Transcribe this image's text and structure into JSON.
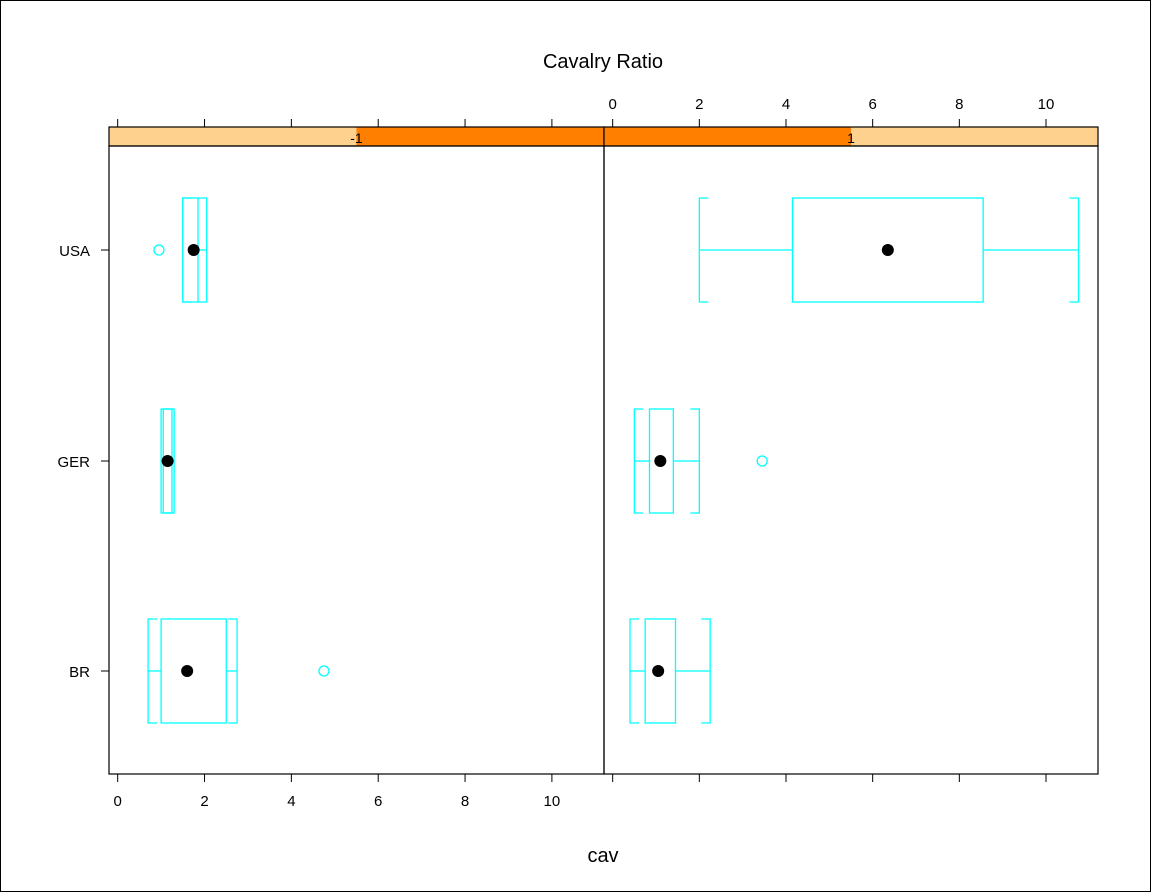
{
  "chart_data": {
    "type": "boxplot",
    "title": "Cavalry Ratio",
    "xlabel": "cav",
    "ylabel": "",
    "xlim": [
      -0.2,
      11.2
    ],
    "x_ticks": [
      0,
      2,
      4,
      6,
      8,
      10
    ],
    "x_tick_labels": [
      "0",
      "2",
      "4",
      "6",
      "8",
      "10"
    ],
    "categories": [
      "BR",
      "GER",
      "USA"
    ],
    "panels": [
      {
        "strip_label": "-1",
        "strip_shingle_range": [
          0.0,
          0.5
        ],
        "boxes": [
          {
            "category": "BR",
            "whisker_low": 0.7,
            "q1": 1.0,
            "median": 1.6,
            "q3": 2.5,
            "whisker_high": 2.75,
            "outliers": [
              4.75
            ]
          },
          {
            "category": "GER",
            "whisker_low": 1.0,
            "q1": 1.05,
            "median": 1.15,
            "q3": 1.25,
            "whisker_high": 1.3,
            "outliers": []
          },
          {
            "category": "USA",
            "whisker_low": 1.5,
            "q1": 1.5,
            "median": 1.75,
            "q3": 1.85,
            "whisker_high": 2.05,
            "outliers": [
              0.95
            ]
          }
        ]
      },
      {
        "strip_label": "1",
        "strip_shingle_range": [
          0.5,
          1.0
        ],
        "boxes": [
          {
            "category": "BR",
            "whisker_low": 0.4,
            "q1": 0.75,
            "median": 1.05,
            "q3": 1.45,
            "whisker_high": 2.25,
            "outliers": []
          },
          {
            "category": "GER",
            "whisker_low": 0.5,
            "q1": 0.85,
            "median": 1.1,
            "q3": 1.4,
            "whisker_high": 2.0,
            "outliers": [
              3.45
            ]
          },
          {
            "category": "USA",
            "whisker_low": 2.0,
            "q1": 4.15,
            "median": 6.35,
            "q3": 8.55,
            "whisker_high": 10.75,
            "outliers": []
          }
        ]
      }
    ],
    "colors": {
      "box": "#00ffff",
      "median_dot": "#000000",
      "strip_dark": "#ff7f00",
      "strip_light": "#ffd18f"
    }
  }
}
